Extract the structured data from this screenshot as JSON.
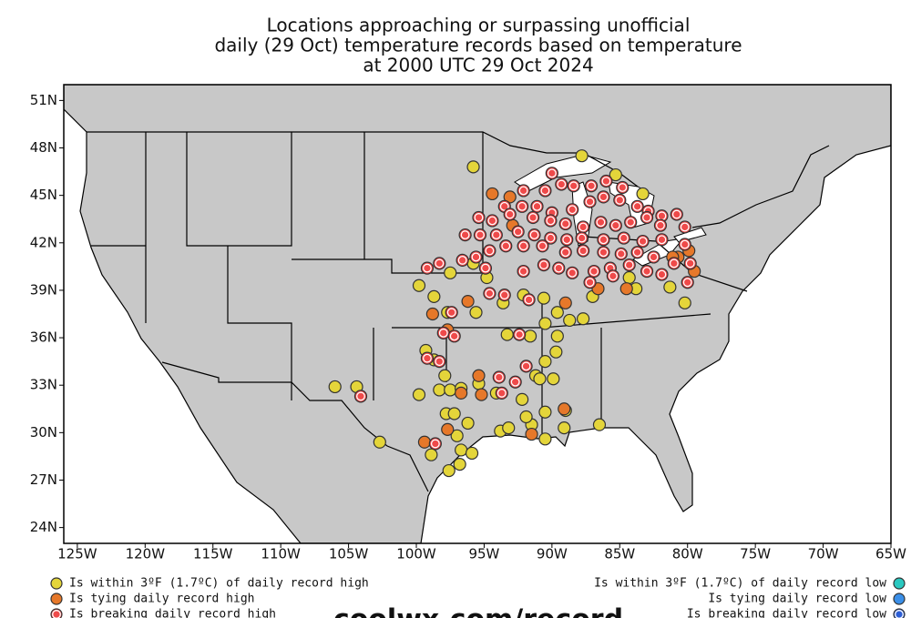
{
  "chart_data": {
    "type": "scatter",
    "title": [
      "Locations approaching or surpassing unofficial",
      "daily (29 Oct) temperature records based on temperature",
      "at 2000 UTC 29 Oct 2024"
    ],
    "xlim": [
      -126,
      -65
    ],
    "ylim": [
      23,
      52
    ],
    "xticks": [
      {
        "value": -125,
        "label": "125W"
      },
      {
        "value": -120,
        "label": "120W"
      },
      {
        "value": -115,
        "label": "115W"
      },
      {
        "value": -110,
        "label": "110W"
      },
      {
        "value": -105,
        "label": "105W"
      },
      {
        "value": -100,
        "label": "100W"
      },
      {
        "value": -95,
        "label": "95W"
      },
      {
        "value": -90,
        "label": "90W"
      },
      {
        "value": -85,
        "label": "85W"
      },
      {
        "value": -80,
        "label": "80W"
      },
      {
        "value": -75,
        "label": "75W"
      },
      {
        "value": -70,
        "label": "70W"
      },
      {
        "value": -65,
        "label": "65W"
      }
    ],
    "yticks": [
      {
        "value": 24,
        "label": "24N"
      },
      {
        "value": 27,
        "label": "27N"
      },
      {
        "value": 30,
        "label": "30N"
      },
      {
        "value": 33,
        "label": "33N"
      },
      {
        "value": 36,
        "label": "36N"
      },
      {
        "value": 39,
        "label": "39N"
      },
      {
        "value": 42,
        "label": "42N"
      },
      {
        "value": 45,
        "label": "45N"
      },
      {
        "value": 48,
        "label": "48N"
      },
      {
        "value": 51,
        "label": "51N"
      }
    ],
    "grid": false,
    "source": "coolwx.com/record",
    "series": [
      {
        "name": "Is within 3ºF (1.7ºC) of daily record high",
        "color": "#e4d53a",
        "legend_side": "left",
        "x": [
          -95.8,
          -87.8,
          -85.3,
          -83.3,
          -99.8,
          -98.7,
          -97.5,
          -94.8,
          -95.8,
          -97.7,
          -95.6,
          -93.6,
          -92.1,
          -90.6,
          -89.6,
          -90.5,
          -89.6,
          -88.7,
          -87.7,
          -87.0,
          -84.3,
          -83.8,
          -81.3,
          -80.2,
          -99.3,
          -98.7,
          -97.9,
          -99.8,
          -98.3,
          -97.5,
          -96.7,
          -95.4,
          -94.1,
          -92.2,
          -91.2,
          -90.9,
          -89.9,
          -90.5,
          -89.7,
          -93.3,
          -91.6,
          -97.8,
          -97.2,
          -96.2,
          -97.0,
          -96.7,
          -95.9,
          -96.8,
          -97.6,
          -98.9,
          -102.7,
          -104.4,
          -106.0,
          -93.8,
          -93.2,
          -91.5,
          -90.5,
          -89.1,
          -90.5,
          -86.5,
          -91.9,
          -89.0
        ],
        "values": [
          46.8,
          47.5,
          46.3,
          45.1,
          39.3,
          38.6,
          40.1,
          39.8,
          40.7,
          37.6,
          37.6,
          38.2,
          38.7,
          38.5,
          37.6,
          36.9,
          36.1,
          37.1,
          37.2,
          38.6,
          39.8,
          39.1,
          39.2,
          38.2,
          35.2,
          34.6,
          33.6,
          32.4,
          32.7,
          32.7,
          32.8,
          33.1,
          32.5,
          32.1,
          33.6,
          33.4,
          33.4,
          34.5,
          35.1,
          36.2,
          36.1,
          31.2,
          31.2,
          30.6,
          29.8,
          28.9,
          28.7,
          28.0,
          27.6,
          28.6,
          29.4,
          32.9,
          32.9,
          30.1,
          30.3,
          30.5,
          29.6,
          30.3,
          31.3,
          30.5,
          31.0,
          31.4
        ]
      },
      {
        "name": "Is tying daily record high",
        "color": "#e6782a",
        "legend_side": "left",
        "x": [
          -94.4,
          -93.1,
          -98.8,
          -97.7,
          -96.2,
          -95.4,
          -95.2,
          -96.7,
          -97.7,
          -99.4,
          -91.5,
          -89.1,
          -89.0,
          -86.6,
          -84.5,
          -80.7,
          -79.5,
          -79.9,
          -81.1,
          -92.9
        ],
        "values": [
          45.1,
          44.9,
          37.5,
          36.5,
          38.3,
          33.6,
          32.4,
          32.5,
          30.2,
          29.4,
          29.9,
          31.5,
          38.2,
          39.1,
          39.1,
          41.1,
          40.2,
          41.5,
          41.1,
          43.1
        ]
      },
      {
        "name": "Is breaking daily record high",
        "color": "#ef4a4a",
        "legend_side": "left",
        "ring": true,
        "x": [
          -90.0,
          -92.1,
          -90.5,
          -89.3,
          -88.4,
          -87.1,
          -86.0,
          -84.8,
          -93.5,
          -92.2,
          -91.1,
          -90.0,
          -88.5,
          -87.2,
          -86.2,
          -85.0,
          -83.7,
          -82.9,
          -81.9,
          -80.8,
          -95.4,
          -94.4,
          -93.1,
          -91.4,
          -90.1,
          -89.0,
          -87.7,
          -86.4,
          -85.3,
          -84.2,
          -83.0,
          -82.0,
          -80.2,
          -96.4,
          -95.3,
          -94.1,
          -92.5,
          -91.3,
          -90.1,
          -88.9,
          -87.8,
          -86.2,
          -84.7,
          -83.3,
          -81.9,
          -80.2,
          -99.2,
          -98.3,
          -96.6,
          -95.6,
          -94.6,
          -93.4,
          -92.1,
          -90.7,
          -89.0,
          -87.7,
          -86.2,
          -84.9,
          -83.7,
          -82.5,
          -81.0,
          -79.8,
          -94.9,
          -92.1,
          -90.6,
          -89.5,
          -88.5,
          -86.9,
          -85.7,
          -84.3,
          -83.0,
          -81.9,
          -80.0,
          -87.2,
          -85.5,
          -94.6,
          -93.5,
          -91.7,
          -97.4,
          -98.0,
          -97.2,
          -92.4,
          -99.2,
          -98.3,
          -91.9,
          -93.9,
          -92.7,
          -93.7,
          -104.1,
          -98.6
        ],
        "values": [
          46.4,
          45.3,
          45.3,
          45.7,
          45.6,
          45.6,
          45.9,
          45.5,
          44.3,
          44.3,
          44.3,
          43.9,
          44.1,
          44.6,
          44.9,
          44.7,
          44.3,
          44.0,
          43.7,
          43.8,
          43.6,
          43.4,
          43.8,
          43.6,
          43.4,
          43.2,
          43.0,
          43.3,
          43.1,
          43.3,
          43.6,
          43.1,
          43.0,
          42.5,
          42.5,
          42.5,
          42.7,
          42.5,
          42.3,
          42.2,
          42.3,
          42.2,
          42.3,
          42.1,
          42.2,
          41.9,
          40.4,
          40.7,
          40.9,
          41.1,
          41.5,
          41.8,
          41.8,
          41.8,
          41.4,
          41.5,
          41.4,
          41.3,
          41.4,
          41.1,
          40.7,
          40.7,
          40.4,
          40.2,
          40.6,
          40.4,
          40.1,
          40.2,
          40.4,
          40.6,
          40.2,
          40.0,
          39.5,
          39.5,
          39.9,
          38.8,
          38.7,
          38.4,
          37.6,
          36.3,
          36.1,
          36.2,
          34.7,
          34.5,
          34.2,
          33.5,
          33.2,
          32.5,
          32.3,
          29.3
        ]
      },
      {
        "name": "Is within 3ºF (1.7ºC) of daily record low",
        "color": "#2ac8c0",
        "legend_side": "right",
        "x": [],
        "values": []
      },
      {
        "name": "Is tying daily record low",
        "color": "#3b8fe8",
        "legend_side": "right",
        "x": [],
        "values": []
      },
      {
        "name": "Is breaking daily record low",
        "color": "#2c5ed6",
        "legend_side": "right",
        "ring": true,
        "x": [],
        "values": []
      }
    ]
  }
}
